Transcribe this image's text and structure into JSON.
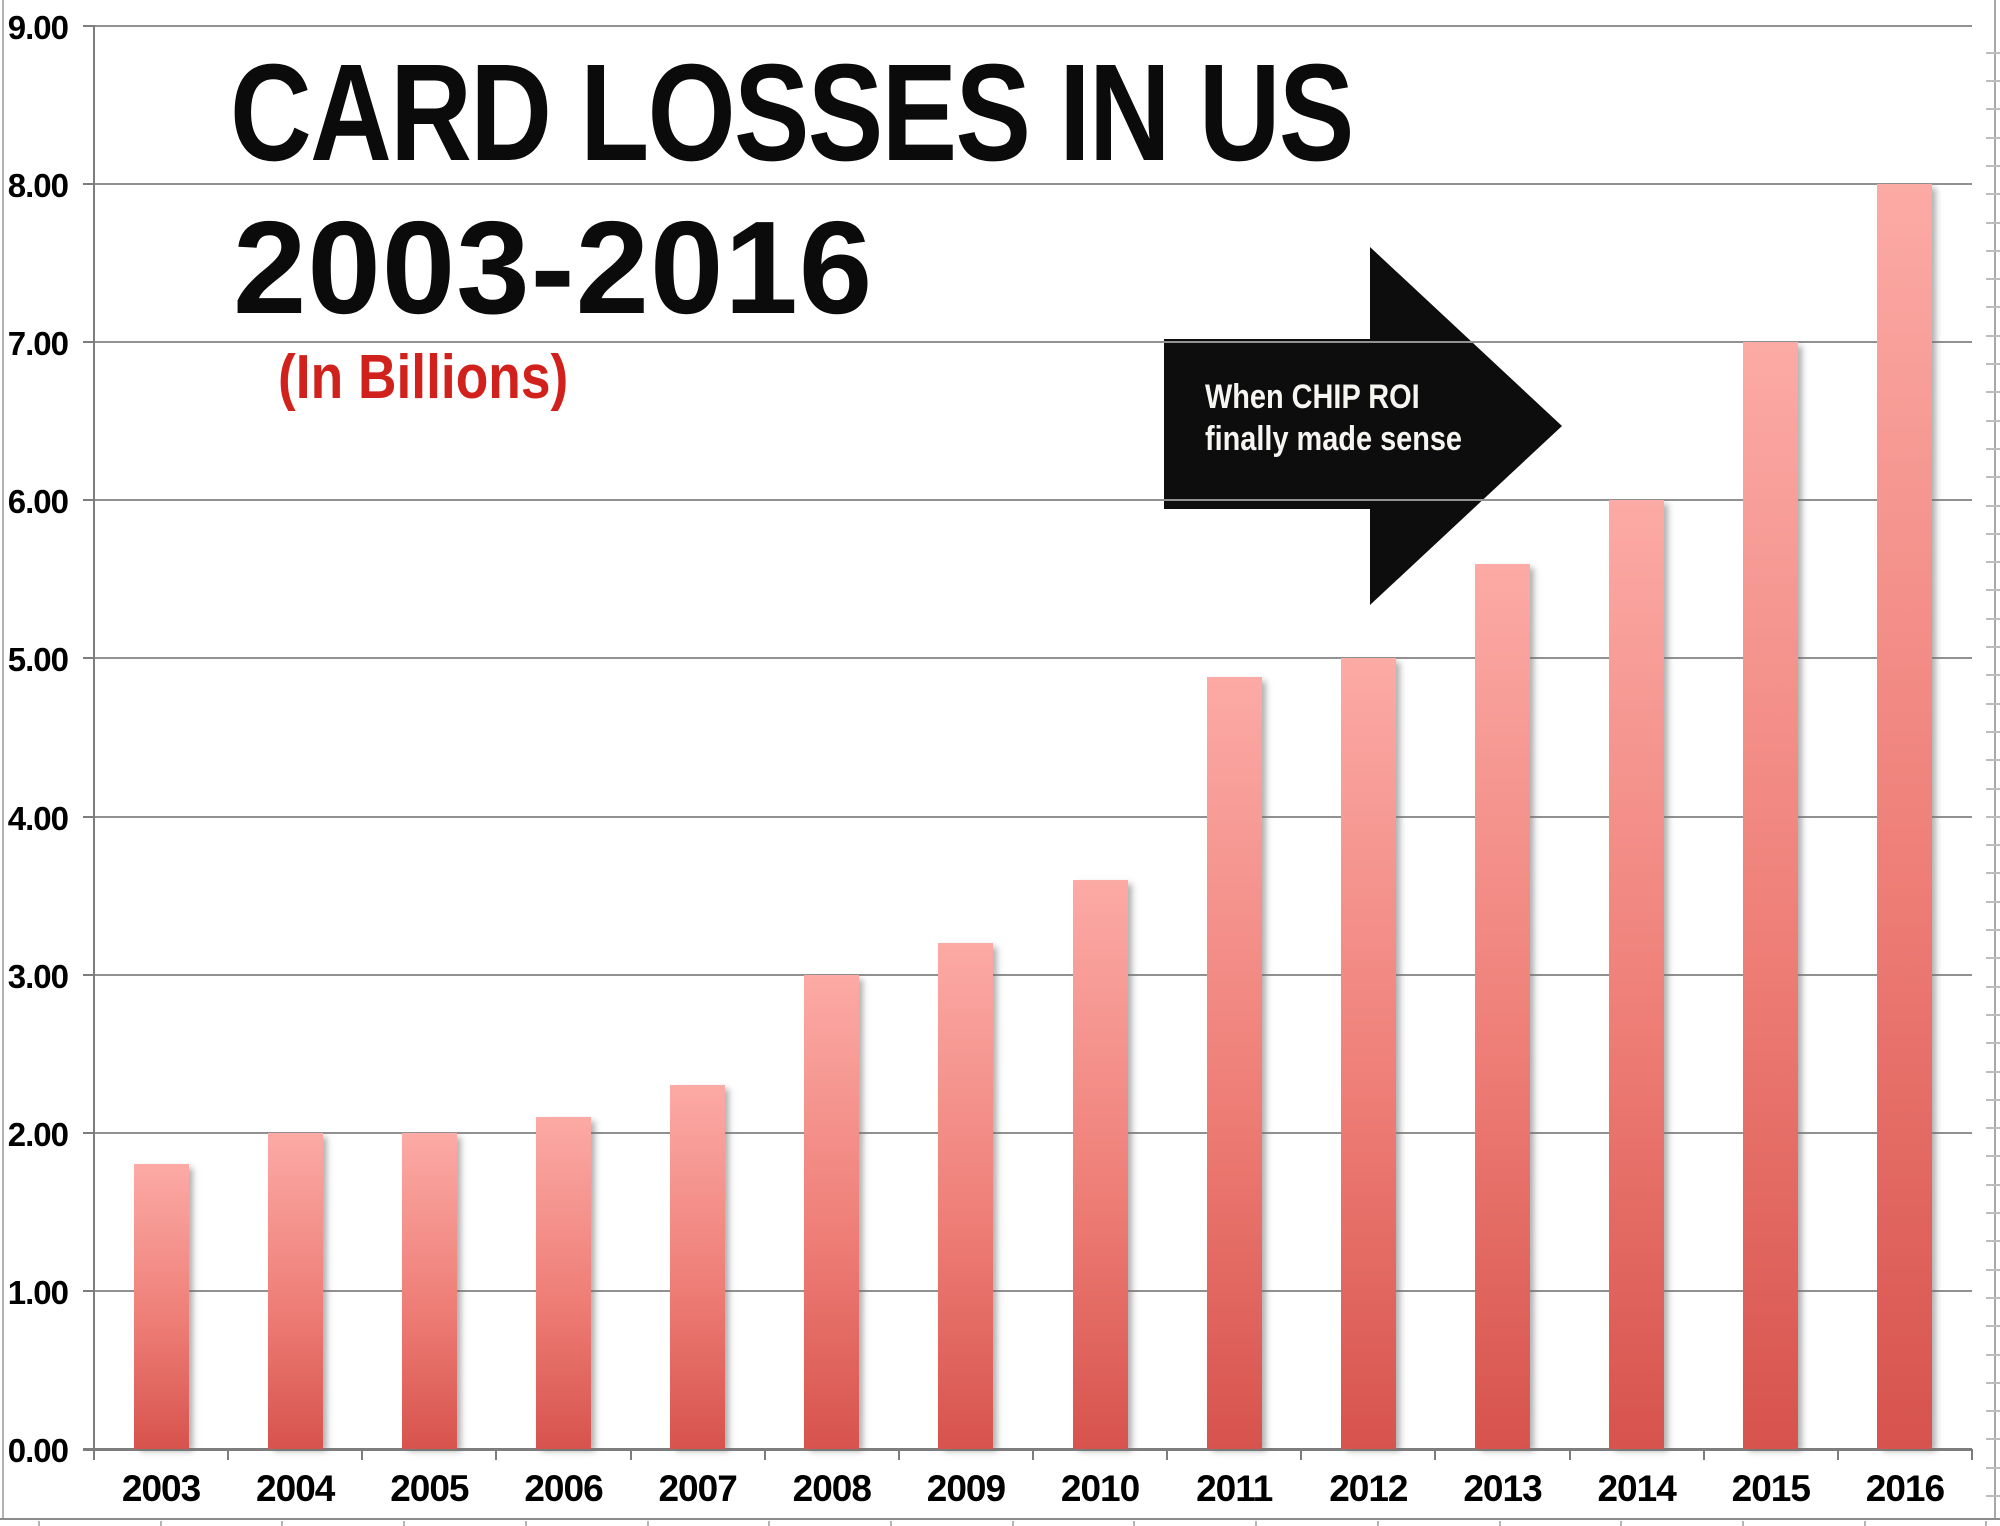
{
  "page": {
    "background": "#ffffff"
  },
  "chart_data": {
    "type": "bar",
    "title": "CARD LOSSES IN US",
    "subtitle": "2003-2016",
    "units_label": "(In Billions)",
    "categories": [
      "2003",
      "2004",
      "2005",
      "2006",
      "2007",
      "2008",
      "2009",
      "2010",
      "2011",
      "2012",
      "2013",
      "2014",
      "2015",
      "2016"
    ],
    "values": [
      1.8,
      2.0,
      2.0,
      2.1,
      2.3,
      3.0,
      3.2,
      3.6,
      4.88,
      5.0,
      5.6,
      6.0,
      7.0,
      8.0
    ],
    "xlabel": "",
    "ylabel": "",
    "ylim": [
      0,
      9
    ],
    "y_ticks": [
      "0.00",
      "1.00",
      "2.00",
      "3.00",
      "4.00",
      "5.00",
      "6.00",
      "7.00",
      "8.00",
      "9.00"
    ],
    "grid": true,
    "legend_position": "none",
    "annotation": {
      "line1": "When CHIP ROI",
      "line2": "finally made sense",
      "shape": "right-arrow"
    },
    "colors": {
      "bar_top": "#fcaaa5",
      "bar_bottom": "#d7534d",
      "gridline": "#919191",
      "axis": "#7d7d7d",
      "title": "#0b0b0b",
      "units_label": "#d1211c",
      "annotation_bg": "#0d0d0d",
      "annotation_text": "#f7f5f2"
    }
  }
}
